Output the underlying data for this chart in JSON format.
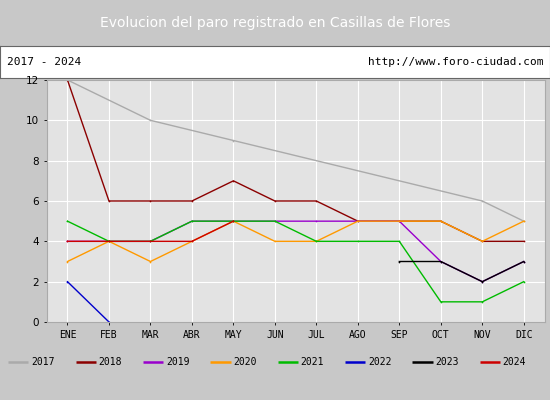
{
  "title": "Evolucion del paro registrado en Casillas de Flores",
  "subtitle_left": "2017 - 2024",
  "subtitle_right": "http://www.foro-ciudad.com",
  "x_labels": [
    "ENE",
    "FEB",
    "MAR",
    "ABR",
    "MAY",
    "JUN",
    "JUL",
    "AGO",
    "SEP",
    "OCT",
    "NOV",
    "DIC"
  ],
  "ylim": [
    0,
    12
  ],
  "yticks": [
    0,
    2,
    4,
    6,
    8,
    10,
    12
  ],
  "series": [
    {
      "year": "2017",
      "data": [
        12,
        null,
        10,
        null,
        9,
        null,
        null,
        null,
        null,
        null,
        6,
        5
      ],
      "color": "#aaaaaa"
    },
    {
      "year": "2018",
      "data": [
        12,
        6,
        6,
        6,
        7,
        6,
        6,
        5,
        5,
        5,
        4,
        4
      ],
      "color": "#8b0000"
    },
    {
      "year": "2019",
      "data": [
        4,
        4,
        4,
        5,
        5,
        5,
        5,
        5,
        5,
        3,
        2,
        3
      ],
      "color": "#9900cc"
    },
    {
      "year": "2020",
      "data": [
        3,
        4,
        3,
        4,
        5,
        4,
        4,
        5,
        5,
        5,
        4,
        5
      ],
      "color": "#ff9900"
    },
    {
      "year": "2021",
      "data": [
        5,
        4,
        4,
        5,
        5,
        5,
        4,
        4,
        4,
        1,
        1,
        2
      ],
      "color": "#00bb00"
    },
    {
      "year": "2022",
      "data": [
        2,
        0,
        null,
        null,
        null,
        null,
        null,
        null,
        null,
        null,
        null,
        null
      ],
      "color": "#0000cc"
    },
    {
      "year": "2023",
      "data": [
        null,
        null,
        null,
        null,
        null,
        null,
        null,
        null,
        3,
        3,
        2,
        3
      ],
      "color": "#000000"
    },
    {
      "year": "2024",
      "data": [
        4,
        4,
        4,
        4,
        5,
        null,
        null,
        null,
        null,
        null,
        null,
        null
      ],
      "color": "#cc0000"
    }
  ],
  "title_bg": "#5080c8",
  "title_color": "#ffffff",
  "plot_bg": "#e3e3e3",
  "grid_color": "#ffffff",
  "legend_bg": "#c8c8c8",
  "border_color": "#888888",
  "outer_bg": "#c8c8c8"
}
